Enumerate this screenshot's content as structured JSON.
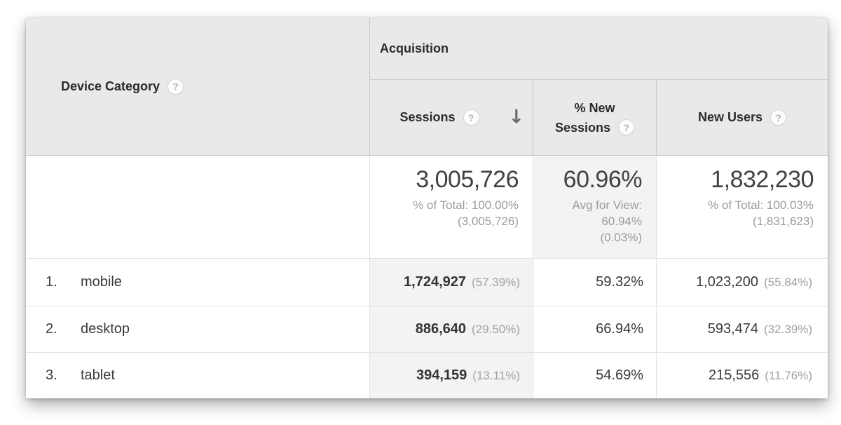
{
  "icons": {
    "help": "?",
    "sort_desc": "↓"
  },
  "columns": {
    "device_category": "Device Category",
    "group": "Acquisition",
    "sessions": "Sessions",
    "pct_new_sessions_line1": "% New",
    "pct_new_sessions_line2": "Sessions",
    "new_users": "New Users"
  },
  "summary": {
    "sessions": {
      "value": "3,005,726",
      "sub1": "% of Total: 100.00%",
      "sub2": "(3,005,726)"
    },
    "pct_new_sessions": {
      "value": "60.96%",
      "sub1": "Avg for View:",
      "sub2": "60.94%",
      "sub3": "(0.03%)"
    },
    "new_users": {
      "value": "1,832,230",
      "sub1": "% of Total: 100.03%",
      "sub2": "(1,831,623)"
    }
  },
  "rows": [
    {
      "index": "1.",
      "label": "mobile",
      "sessions": "1,724,927",
      "sessions_pct": "(57.39%)",
      "pct_new_sessions": "59.32%",
      "new_users": "1,023,200",
      "new_users_pct": "(55.84%)"
    },
    {
      "index": "2.",
      "label": "desktop",
      "sessions": "886,640",
      "sessions_pct": "(29.50%)",
      "pct_new_sessions": "66.94%",
      "new_users": "593,474",
      "new_users_pct": "(32.39%)"
    },
    {
      "index": "3.",
      "label": "tablet",
      "sessions": "394,159",
      "sessions_pct": "(13.11%)",
      "pct_new_sessions": "54.69%",
      "new_users": "215,556",
      "new_users_pct": "(11.76%)"
    }
  ],
  "colors": {
    "header_bg": "#e9e9e9",
    "sorted_column_bg": "#f3f3f3",
    "header_text": "#2b2b2b",
    "body_text": "#3a3a3a",
    "secondary_text": "#9b9b9b",
    "border_header": "#c9c9c9",
    "border_body": "#e2e2e2"
  }
}
